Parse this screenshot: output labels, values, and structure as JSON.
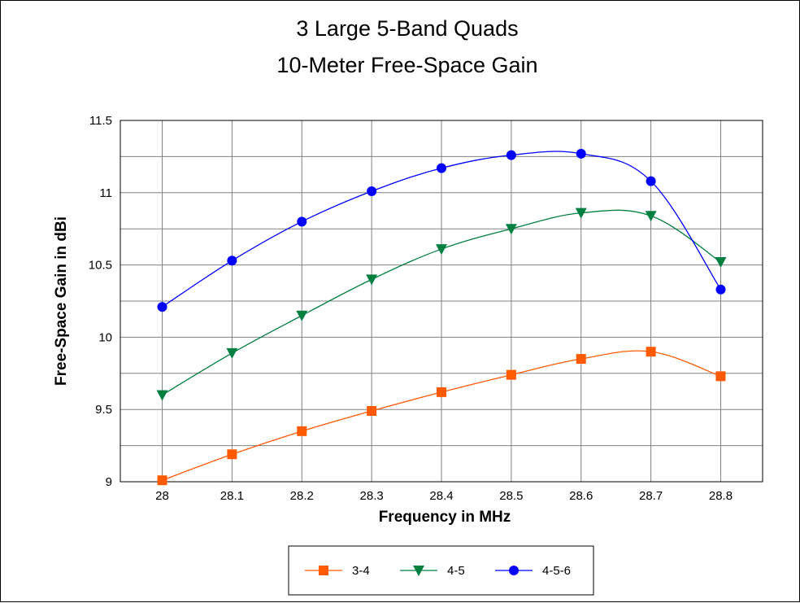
{
  "chart_data": {
    "type": "line",
    "title": [
      "3 Large 5-Band Quads",
      "10-Meter Free-Space Gain"
    ],
    "xlabel": "Frequency in MHz",
    "ylabel": "Free-Space Gain in dBi",
    "x": [
      28,
      28.1,
      28.2,
      28.3,
      28.4,
      28.5,
      28.6,
      28.7,
      28.8
    ],
    "x_tick_labels": [
      "28",
      "28.1",
      "28.2",
      "28.3",
      "28.4",
      "28.5",
      "28.6",
      "28.7",
      "28.8"
    ],
    "xlim": [
      27.94,
      28.86
    ],
    "ylim": [
      9,
      11.5
    ],
    "y_ticks": [
      9,
      9.5,
      10,
      10.5,
      11,
      11.5
    ],
    "y_tick_labels": [
      "9",
      "9.5",
      "10",
      "10.5",
      "11",
      "11.5"
    ],
    "grid": true,
    "legend_position": "bottom-center",
    "series": [
      {
        "name": "3-4",
        "color": "#ff5a00",
        "marker": "square",
        "values": [
          9.01,
          9.19,
          9.35,
          9.49,
          9.62,
          9.74,
          9.85,
          9.9,
          9.73
        ]
      },
      {
        "name": "4-5",
        "color": "#008040",
        "marker": "triangle-down",
        "values": [
          9.6,
          9.89,
          10.15,
          10.4,
          10.61,
          10.75,
          10.86,
          10.84,
          10.52
        ]
      },
      {
        "name": "4-5-6",
        "color": "#0000ff",
        "marker": "circle",
        "values": [
          10.21,
          10.53,
          10.8,
          11.01,
          11.17,
          11.26,
          11.27,
          11.08,
          10.33
        ]
      }
    ]
  }
}
